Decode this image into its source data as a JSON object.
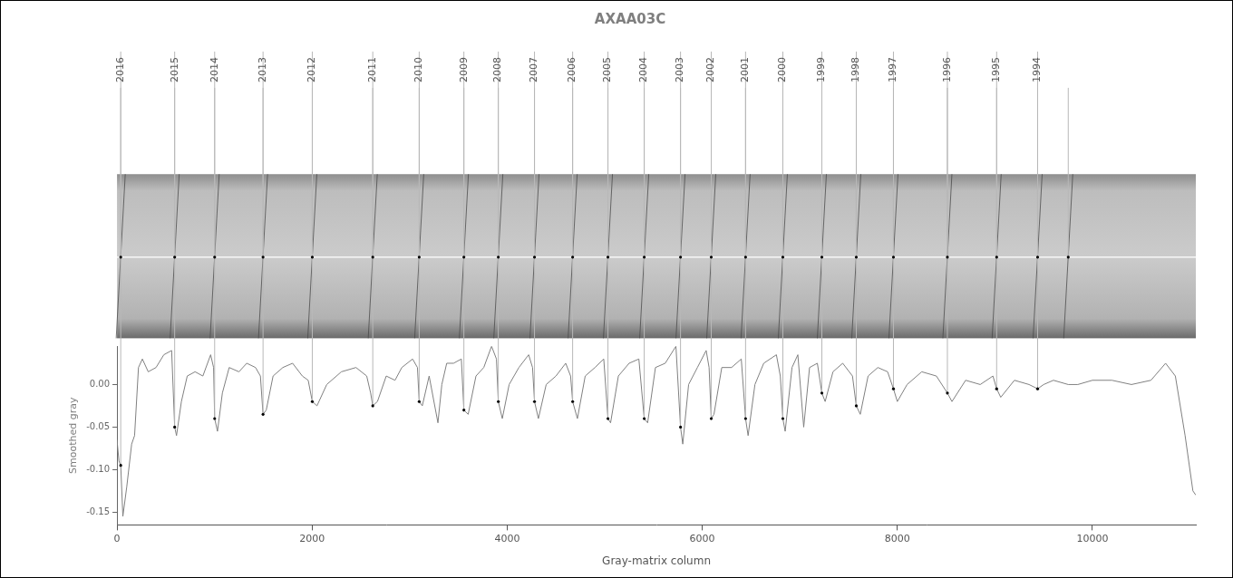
{
  "chart_data": {
    "type": "line",
    "title": "AXAA03C",
    "x_label": "Gray-matrix column",
    "y_label": "Smoothed gray",
    "color": "#808080",
    "grid": false,
    "xlim": [
      0,
      11060
    ],
    "ylim": [
      -0.165,
      0.045
    ],
    "xticks": [
      0,
      2000,
      4000,
      6000,
      8000,
      10000
    ],
    "yticks": [
      -0.15,
      {
        "value": -0.1,
        "label": "-0.10"
      },
      -0.05,
      {
        "value": 0,
        "label": "0.00"
      }
    ],
    "x": [
      0,
      20,
      38,
      60,
      100,
      150,
      180,
      220,
      260,
      320,
      400,
      480,
      560,
      591,
      610,
      660,
      720,
      800,
      880,
      960,
      990,
      1001,
      1030,
      1080,
      1150,
      1250,
      1330,
      1420,
      1470,
      1497,
      1530,
      1600,
      1700,
      1800,
      1900,
      1960,
      2002,
      2050,
      2150,
      2300,
      2450,
      2560,
      2600,
      2622,
      2670,
      2760,
      2850,
      2920,
      3030,
      3080,
      3098,
      3130,
      3200,
      3290,
      3330,
      3380,
      3450,
      3530,
      3556,
      3600,
      3680,
      3760,
      3840,
      3890,
      3909,
      3950,
      4020,
      4120,
      4220,
      4260,
      4280,
      4320,
      4400,
      4500,
      4600,
      4650,
      4671,
      4720,
      4800,
      4900,
      4990,
      5033,
      5060,
      5140,
      5250,
      5350,
      5405,
      5440,
      5520,
      5620,
      5730,
      5777,
      5800,
      5860,
      5950,
      6040,
      6070,
      6092,
      6120,
      6200,
      6300,
      6400,
      6444,
      6470,
      6540,
      6630,
      6760,
      6800,
      6826,
      6850,
      6920,
      6980,
      7040,
      7100,
      7180,
      7226,
      7260,
      7340,
      7440,
      7540,
      7579,
      7620,
      7700,
      7800,
      7900,
      7960,
      8000,
      8100,
      8250,
      8400,
      8513,
      8560,
      8700,
      8850,
      8980,
      9018,
      9060,
      9200,
      9350,
      9438,
      9500,
      9600,
      9752,
      9850,
      10000,
      10200,
      10400,
      10600,
      10750,
      10850,
      10950,
      11030,
      11060
    ],
    "values": [
      -0.065,
      -0.09,
      -0.095,
      -0.155,
      -0.12,
      -0.07,
      -0.06,
      0.02,
      0.03,
      0.015,
      0.02,
      0.035,
      0.04,
      -0.05,
      -0.06,
      -0.02,
      0.01,
      0.015,
      0.01,
      0.035,
      0.02,
      -0.04,
      -0.055,
      -0.01,
      0.02,
      0.015,
      0.025,
      0.02,
      0.01,
      -0.035,
      -0.03,
      0.01,
      0.02,
      0.025,
      0.01,
      0.005,
      -0.02,
      -0.025,
      0,
      0.015,
      0.02,
      0.01,
      -0.01,
      -0.025,
      -0.02,
      0.01,
      0.005,
      0.02,
      0.03,
      0.02,
      -0.02,
      -0.025,
      0.01,
      -0.045,
      0,
      0.025,
      0.025,
      0.03,
      -0.03,
      -0.035,
      0.01,
      0.02,
      0.045,
      0.03,
      -0.02,
      -0.04,
      0,
      0.02,
      0.035,
      0.02,
      -0.02,
      -0.04,
      0,
      0.01,
      0.025,
      0.01,
      -0.02,
      -0.04,
      0.01,
      0.02,
      0.03,
      -0.04,
      -0.045,
      0.01,
      0.025,
      0.03,
      -0.04,
      -0.045,
      0.02,
      0.025,
      0.045,
      -0.05,
      -0.07,
      0,
      0.02,
      0.04,
      0.02,
      -0.04,
      -0.035,
      0.02,
      0.02,
      0.03,
      -0.04,
      -0.06,
      0,
      0.025,
      0.035,
      0.01,
      -0.04,
      -0.055,
      0.02,
      0.035,
      -0.05,
      0.02,
      0.025,
      -0.01,
      -0.02,
      0.015,
      0.025,
      0.01,
      -0.025,
      -0.035,
      0.01,
      0.02,
      0.015,
      -0.005,
      -0.02,
      0,
      0.015,
      0.01,
      -0.01,
      -0.02,
      0.005,
      0,
      0.01,
      -0.005,
      -0.015,
      0.005,
      0,
      -0.005,
      0,
      0.005,
      0,
      0,
      0.005,
      0.005,
      0,
      0.005,
      0.025,
      0.01,
      -0.06,
      -0.125,
      -0.13
    ],
    "rings": {
      "years": [
        2016,
        2015,
        2014,
        2013,
        2012,
        2011,
        2010,
        2009,
        2008,
        2007,
        2006,
        2005,
        2004,
        2003,
        2002,
        2001,
        2000,
        1999,
        1998,
        1997,
        1996,
        1995,
        1994,
        null
      ],
      "positions": [
        38,
        591,
        1001,
        1497,
        2002,
        2622,
        3098,
        3556,
        3909,
        4280,
        4671,
        5033,
        5405,
        5777,
        6092,
        6444,
        6826,
        7226,
        7579,
        7960,
        8513,
        9018,
        9438,
        9752
      ]
    }
  }
}
